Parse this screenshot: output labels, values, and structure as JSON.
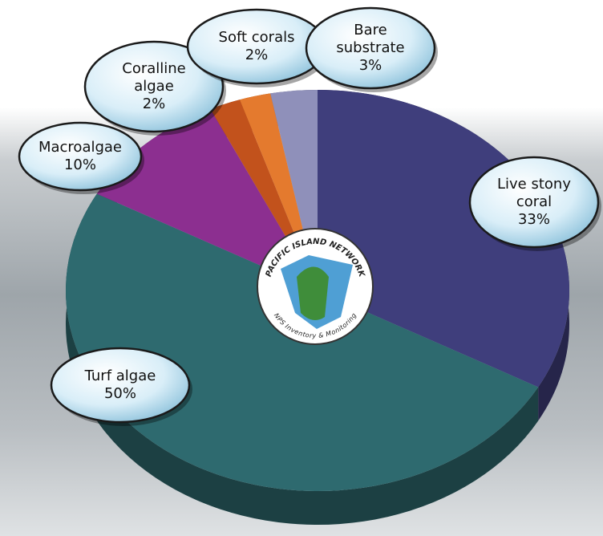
{
  "chart_data": {
    "type": "pie",
    "categories": [
      "Live stony coral",
      "Turf algae",
      "Macroalgae",
      "Coralline algae",
      "Soft corals",
      "Bare substrate"
    ],
    "values": [
      33,
      50,
      10,
      2,
      2,
      3
    ],
    "value_labels": [
      "33%",
      "50%",
      "10%",
      "2%",
      "2%",
      "3%"
    ],
    "colors": [
      "#3f3e7c",
      "#2e6a6f",
      "#8c2f90",
      "#c2521c",
      "#e47a2e",
      "#8f90ba"
    ],
    "logo": {
      "top_text": "PACIFIC ISLAND NETWORK",
      "bottom_text": "NPS Inventory & Monitoring"
    }
  }
}
